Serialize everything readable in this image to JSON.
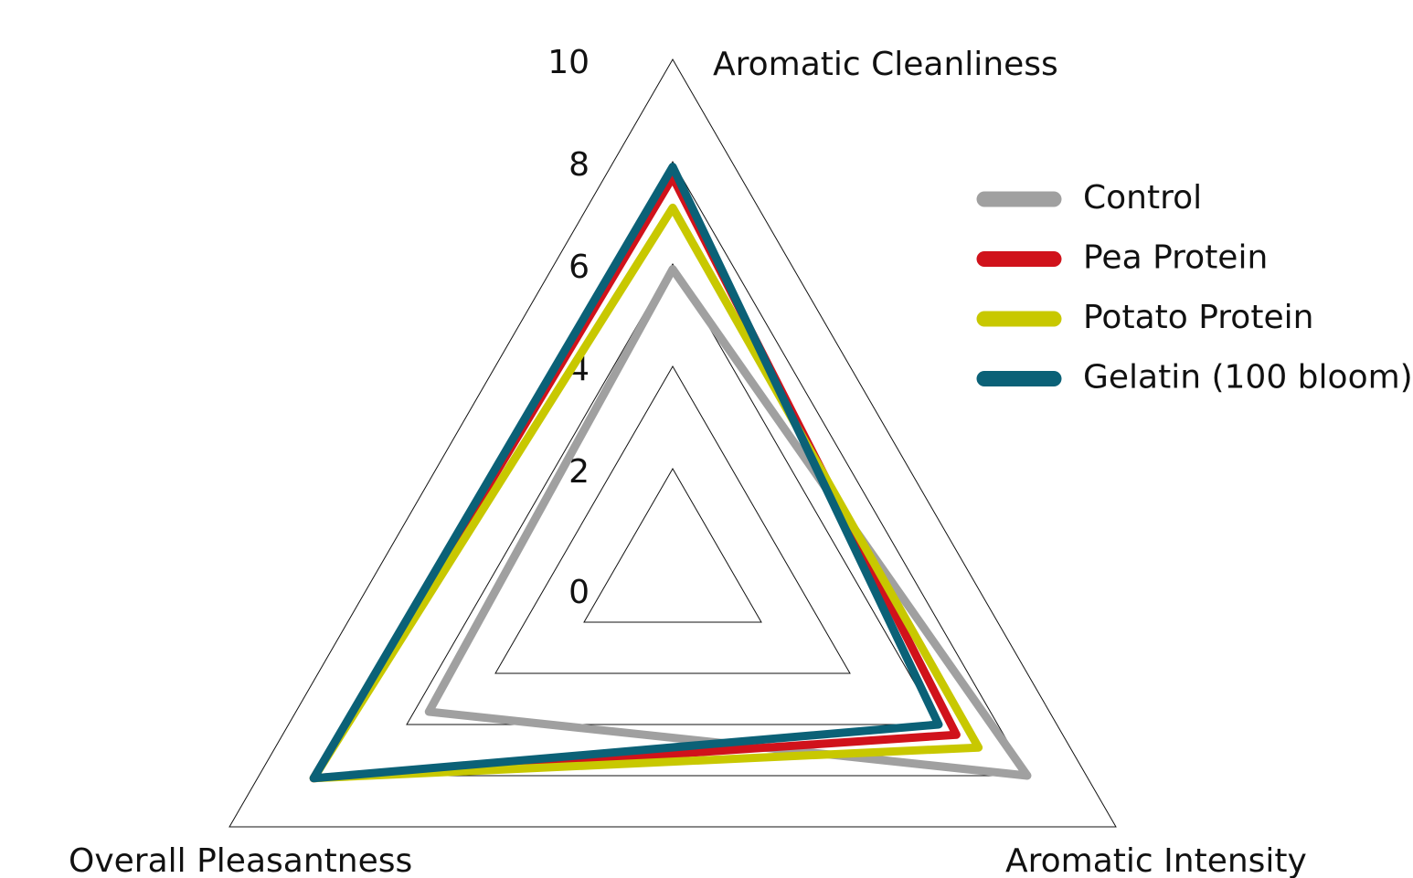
{
  "chart_data": {
    "type": "radar",
    "categories": [
      "Aromatic Cleanliness",
      "Aromatic Intensity",
      "Overall Pleasantness"
    ],
    "series": [
      {
        "name": "Control",
        "color": "#a0a0a0",
        "values": [
          5.9,
          8.0,
          5.5
        ]
      },
      {
        "name": "Pea Protein",
        "color": "#d0121b",
        "values": [
          7.7,
          6.4,
          8.1
        ]
      },
      {
        "name": "Potato Protein",
        "color": "#c8c800",
        "values": [
          7.1,
          6.9,
          8.1
        ]
      },
      {
        "name": "Gelatin (100 bloom)",
        "color": "#0b6177",
        "values": [
          7.9,
          6.0,
          8.1
        ]
      }
    ],
    "rlim": [
      0,
      10
    ],
    "rticks": [
      0,
      2,
      4,
      6,
      8,
      10
    ],
    "legend": "right"
  }
}
